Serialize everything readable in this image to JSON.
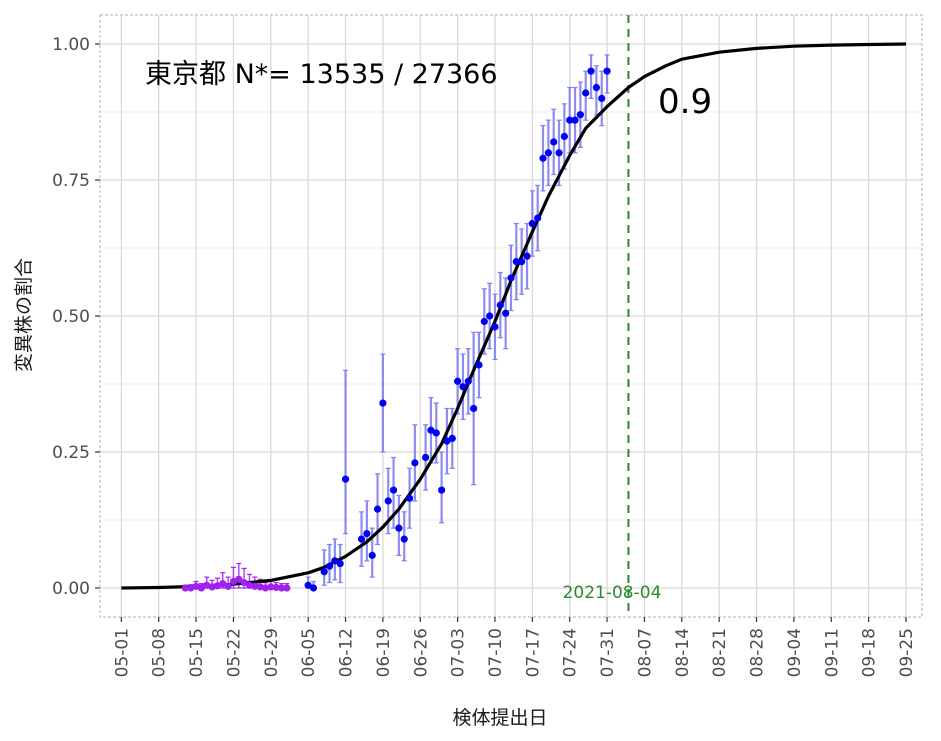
{
  "chart_data": {
    "type": "scatter",
    "title": "",
    "xlabel": "検体提出日",
    "ylabel": "変異株の割合",
    "annotation_region": "東京都 N*= 13535 / 27366",
    "annotation_value": "0.9",
    "vline_label": "2021-08-04",
    "vline_date": "2021-08-04",
    "grid": true,
    "legend": "none",
    "ylim": [
      0,
      1
    ],
    "xlim": [
      "2021-04-27",
      "2021-09-28"
    ],
    "x_ticks": [
      "05-01",
      "05-08",
      "05-15",
      "05-22",
      "05-29",
      "06-05",
      "06-12",
      "06-19",
      "06-26",
      "07-03",
      "07-10",
      "07-17",
      "07-24",
      "07-31",
      "08-07",
      "08-14",
      "08-21",
      "08-28",
      "09-04",
      "09-11",
      "09-18",
      "09-25"
    ],
    "x_tick_dates": [
      "2021-05-01",
      "2021-05-08",
      "2021-05-15",
      "2021-05-22",
      "2021-05-29",
      "2021-06-05",
      "2021-06-12",
      "2021-06-19",
      "2021-06-26",
      "2021-07-03",
      "2021-07-10",
      "2021-07-17",
      "2021-07-24",
      "2021-07-31",
      "2021-08-07",
      "2021-08-14",
      "2021-08-21",
      "2021-08-28",
      "2021-09-04",
      "2021-09-11",
      "2021-09-18",
      "2021-09-25"
    ],
    "y_ticks": [
      "0.00",
      "0.25",
      "0.50",
      "0.75",
      "1.00"
    ],
    "y_tick_values": [
      0,
      0.25,
      0.5,
      0.75,
      1.0
    ],
    "colors": {
      "curve": "#000000",
      "blue_points": "#0000ee",
      "blue_errorbars": "#8080f0",
      "purple_points": "#a020f0",
      "vline": "#2e8b2e",
      "grid": "#d9d9d9",
      "panel_border": "#bfbfbf"
    },
    "series": [
      {
        "name": "",
        "kind": "logistic_fit",
        "x": [
          "2021-05-01",
          "2021-05-08",
          "2021-05-15",
          "2021-05-22",
          "2021-05-29",
          "2021-06-05",
          "2021-06-08",
          "2021-06-12",
          "2021-06-16",
          "2021-06-19",
          "2021-06-22",
          "2021-06-26",
          "2021-06-30",
          "2021-07-03",
          "2021-07-06",
          "2021-07-10",
          "2021-07-13",
          "2021-07-17",
          "2021-07-20",
          "2021-07-24",
          "2021-07-27",
          "2021-07-31",
          "2021-08-04",
          "2021-08-07",
          "2021-08-11",
          "2021-08-14",
          "2021-08-21",
          "2021-08-28",
          "2021-09-04",
          "2021-09-11",
          "2021-09-18",
          "2021-09-25"
        ],
        "y": [
          0.0,
          0.001,
          0.003,
          0.007,
          0.014,
          0.028,
          0.038,
          0.058,
          0.085,
          0.112,
          0.145,
          0.2,
          0.265,
          0.33,
          0.4,
          0.49,
          0.565,
          0.655,
          0.72,
          0.795,
          0.845,
          0.885,
          0.92,
          0.94,
          0.96,
          0.972,
          0.985,
          0.992,
          0.996,
          0.998,
          0.999,
          1.0
        ]
      },
      {
        "name": "",
        "kind": "points_purple",
        "x": [
          "2021-05-13",
          "2021-05-14",
          "2021-05-15",
          "2021-05-16",
          "2021-05-17",
          "2021-05-18",
          "2021-05-19",
          "2021-05-20",
          "2021-05-21",
          "2021-05-22",
          "2021-05-23",
          "2021-05-24",
          "2021-05-25",
          "2021-05-26",
          "2021-05-27",
          "2021-05-28",
          "2021-05-29",
          "2021-05-30",
          "2021-05-31",
          "2021-06-01"
        ],
        "y": [
          0.0,
          0.0,
          0.003,
          0.0,
          0.005,
          0.002,
          0.004,
          0.008,
          0.003,
          0.012,
          0.016,
          0.01,
          0.005,
          0.003,
          0.002,
          0.0,
          0.002,
          0.001,
          0.0,
          0.0
        ],
        "lo": [
          0.0,
          0.0,
          0.0,
          0.0,
          0.0,
          0.0,
          0.0,
          0.0,
          0.0,
          0.0,
          0.0,
          0.0,
          0.0,
          0.0,
          0.0,
          0.0,
          0.0,
          0.0,
          0.0,
          0.0
        ],
        "hi": [
          0.005,
          0.006,
          0.012,
          0.008,
          0.02,
          0.014,
          0.018,
          0.028,
          0.02,
          0.038,
          0.045,
          0.036,
          0.025,
          0.02,
          0.016,
          0.01,
          0.015,
          0.01,
          0.008,
          0.008
        ]
      },
      {
        "name": "",
        "kind": "points_blue",
        "x": [
          "2021-06-05",
          "2021-06-06",
          "2021-06-08",
          "2021-06-09",
          "2021-06-10",
          "2021-06-11",
          "2021-06-12",
          "2021-06-15",
          "2021-06-16",
          "2021-06-17",
          "2021-06-18",
          "2021-06-19",
          "2021-06-20",
          "2021-06-21",
          "2021-06-22",
          "2021-06-23",
          "2021-06-24",
          "2021-06-25",
          "2021-06-27",
          "2021-06-28",
          "2021-06-29",
          "2021-06-30",
          "2021-07-01",
          "2021-07-02",
          "2021-07-03",
          "2021-07-04",
          "2021-07-05",
          "2021-07-06",
          "2021-07-07",
          "2021-07-08",
          "2021-07-09",
          "2021-07-10",
          "2021-07-11",
          "2021-07-12",
          "2021-07-13",
          "2021-07-14",
          "2021-07-15",
          "2021-07-16",
          "2021-07-17",
          "2021-07-18",
          "2021-07-19",
          "2021-07-20",
          "2021-07-21",
          "2021-07-22",
          "2021-07-23",
          "2021-07-24",
          "2021-07-25",
          "2021-07-26",
          "2021-07-27",
          "2021-07-28",
          "2021-07-29",
          "2021-07-30",
          "2021-07-31"
        ],
        "y": [
          0.005,
          0.0,
          0.03,
          0.04,
          0.05,
          0.045,
          0.2,
          0.09,
          0.1,
          0.06,
          0.145,
          0.34,
          0.16,
          0.18,
          0.11,
          0.09,
          0.165,
          0.23,
          0.24,
          0.29,
          0.285,
          0.18,
          0.27,
          0.275,
          0.38,
          0.37,
          0.38,
          0.33,
          0.41,
          0.49,
          0.5,
          0.48,
          0.52,
          0.505,
          0.57,
          0.6,
          0.6,
          0.61,
          0.67,
          0.68,
          0.79,
          0.8,
          0.82,
          0.8,
          0.83,
          0.86,
          0.86,
          0.87,
          0.91,
          0.95,
          0.92,
          0.9,
          0.95
        ],
        "lo": [
          0.0,
          0.0,
          0.005,
          0.01,
          0.015,
          0.01,
          0.1,
          0.04,
          0.05,
          0.02,
          0.08,
          0.25,
          0.1,
          0.11,
          0.06,
          0.05,
          0.11,
          0.16,
          0.18,
          0.23,
          0.23,
          0.12,
          0.21,
          0.22,
          0.32,
          0.31,
          0.32,
          0.19,
          0.35,
          0.43,
          0.44,
          0.42,
          0.46,
          0.44,
          0.51,
          0.53,
          0.54,
          0.55,
          0.61,
          0.62,
          0.73,
          0.74,
          0.76,
          0.74,
          0.77,
          0.8,
          0.8,
          0.81,
          0.86,
          0.9,
          0.87,
          0.85,
          0.91
        ],
        "hi": [
          0.02,
          0.012,
          0.07,
          0.08,
          0.09,
          0.08,
          0.4,
          0.14,
          0.16,
          0.11,
          0.21,
          0.43,
          0.22,
          0.24,
          0.17,
          0.14,
          0.22,
          0.3,
          0.3,
          0.35,
          0.34,
          0.25,
          0.33,
          0.33,
          0.44,
          0.43,
          0.44,
          0.47,
          0.47,
          0.55,
          0.56,
          0.54,
          0.58,
          0.57,
          0.63,
          0.67,
          0.66,
          0.67,
          0.73,
          0.74,
          0.85,
          0.86,
          0.88,
          0.86,
          0.89,
          0.92,
          0.92,
          0.93,
          0.95,
          0.98,
          0.96,
          0.95,
          0.98
        ]
      }
    ]
  }
}
